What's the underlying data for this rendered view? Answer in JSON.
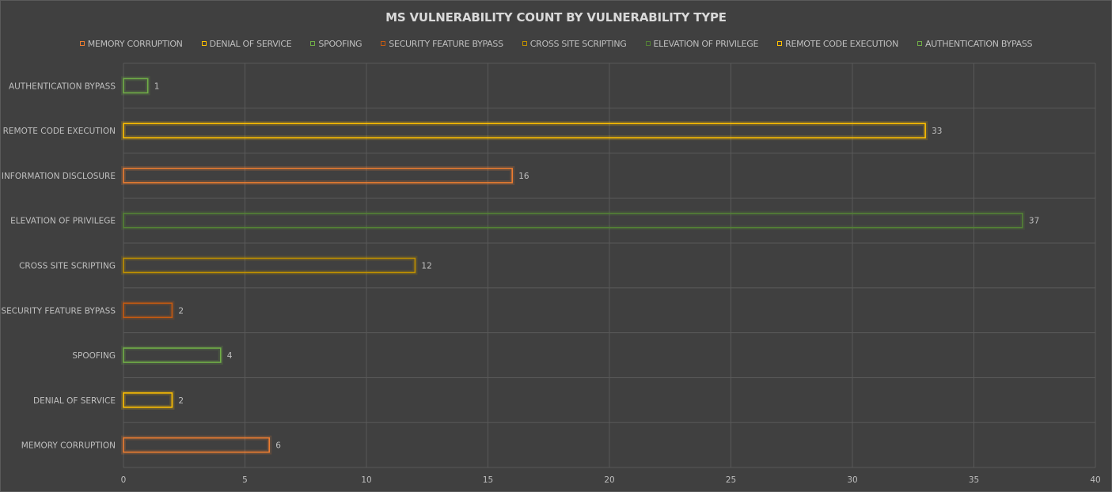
{
  "chart_data": {
    "type": "bar",
    "orientation": "horizontal",
    "title": "MS VULNERABILITY COUNT BY VULNERABILITY TYPE",
    "xlabel": "",
    "ylabel": "",
    "xlim": [
      0,
      40
    ],
    "x_ticks": [
      0,
      5,
      10,
      15,
      20,
      25,
      30,
      35,
      40
    ],
    "grid": true,
    "legend_position": "top",
    "categories": [
      "MEMORY CORRUPTION",
      "DENIAL OF SERVICE",
      "SPOOFING",
      "SECURITY FEATURE BYPASS",
      "CROSS SITE SCRIPTING",
      "ELEVATION OF PRIVILEGE",
      "INFORMATION DISCLOSURE",
      "REMOTE CODE EXECUTION",
      "AUTHENTICATION BYPASS"
    ],
    "values": [
      6,
      2,
      4,
      2,
      12,
      37,
      16,
      33,
      1
    ],
    "bar_colors": [
      "#ed7d31",
      "#ffc000",
      "#70ad47",
      "#c55a11",
      "#bf9000",
      "#548235",
      "#ed7d31",
      "#ffc000",
      "#70ad47"
    ],
    "legend": [
      {
        "label": "MEMORY CORRUPTION",
        "color": "#ed7d31"
      },
      {
        "label": "DENIAL OF SERVICE",
        "color": "#ffc000"
      },
      {
        "label": "SPOOFING",
        "color": "#70ad47"
      },
      {
        "label": "SECURITY FEATURE BYPASS",
        "color": "#c55a11"
      },
      {
        "label": "CROSS SITE SCRIPTING",
        "color": "#bf9000"
      },
      {
        "label": "ELEVATION OF PRIVILEGE",
        "color": "#548235"
      },
      {
        "label": "REMOTE CODE EXECUTION",
        "color": "#ffc000"
      },
      {
        "label": "AUTHENTICATION BYPASS",
        "color": "#70ad47"
      }
    ]
  },
  "style": {
    "background": "#404040",
    "gridline_color": "#595959",
    "text_color": "#bfbfbf",
    "title_color": "#d9d9d9"
  }
}
